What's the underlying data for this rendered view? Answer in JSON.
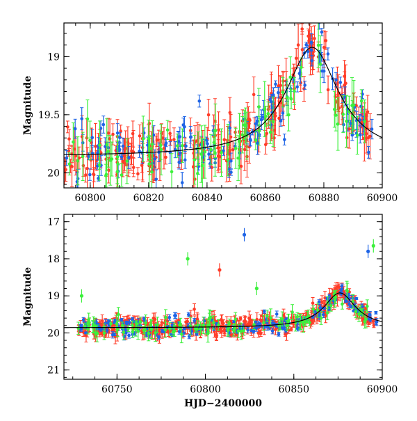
{
  "chart_data": [
    {
      "type": "scatter",
      "panel": "top",
      "title": "",
      "xlabel": "",
      "ylabel": "Magnitude",
      "xlim": [
        60791,
        60900
      ],
      "ylim": [
        20.13,
        18.71
      ],
      "y_inverted": true,
      "x_ticks": [
        60800,
        60820,
        60840,
        60860,
        60880,
        60900
      ],
      "x_tick_labels": [
        "60800",
        "60820",
        "60840",
        "60860",
        "60880",
        "60900"
      ],
      "y_ticks": [
        19,
        19.5,
        20
      ],
      "y_tick_labels": [
        "19",
        "19.5",
        "20"
      ],
      "model_curve": {
        "baseline": 19.86,
        "peak_mag": 18.92,
        "t0": 60876,
        "tE": 11
      },
      "series": [
        {
          "color": "#ff3c28",
          "n": 230,
          "x_range": [
            60791,
            60897
          ],
          "err": [
            0.04,
            0.2
          ]
        },
        {
          "color": "#1e64e6",
          "n": 150,
          "x_range": [
            60791,
            60897
          ],
          "err": [
            0.02,
            0.1
          ]
        },
        {
          "color": "#3cf03c",
          "n": 80,
          "x_range": [
            60791,
            60897
          ],
          "err": [
            0.08,
            0.25
          ]
        }
      ]
    },
    {
      "type": "scatter",
      "panel": "bottom",
      "title": "",
      "xlabel": "HJD−2400000",
      "ylabel": "Magnitude",
      "xlim": [
        60720,
        60900
      ],
      "ylim": [
        21.25,
        16.8
      ],
      "y_inverted": true,
      "x_ticks": [
        60750,
        60800,
        60850,
        60900
      ],
      "x_tick_labels": [
        "60750",
        "60800",
        "60850",
        "60900"
      ],
      "y_ticks": [
        17,
        18,
        19,
        20,
        21
      ],
      "y_tick_labels": [
        "17",
        "18",
        "19",
        "20",
        "21"
      ],
      "model_curve": {
        "baseline": 19.86,
        "peak_mag": 18.92,
        "t0": 60876,
        "tE": 11
      },
      "series": [
        {
          "color": "#ff3c28",
          "n": 420,
          "x_range": [
            60728,
            60897
          ],
          "err": [
            0.04,
            0.2
          ]
        },
        {
          "color": "#1e64e6",
          "n": 190,
          "x_range": [
            60728,
            60897
          ],
          "err": [
            0.02,
            0.1
          ]
        },
        {
          "color": "#3cf03c",
          "n": 110,
          "x_range": [
            60728,
            60897
          ],
          "err": [
            0.08,
            0.25
          ]
        }
      ],
      "outliers": [
        {
          "x": 60822,
          "y": 17.35,
          "color": "#1e64e6"
        },
        {
          "x": 60892,
          "y": 17.8,
          "color": "#1e64e6"
        },
        {
          "x": 60895,
          "y": 17.65,
          "color": "#3cf03c"
        },
        {
          "x": 60790,
          "y": 18.0,
          "color": "#3cf03c"
        },
        {
          "x": 60808,
          "y": 18.3,
          "color": "#ff3c28"
        },
        {
          "x": 60829,
          "y": 18.8,
          "color": "#3cf03c"
        },
        {
          "x": 60730,
          "y": 19.0,
          "color": "#3cf03c"
        }
      ]
    }
  ]
}
